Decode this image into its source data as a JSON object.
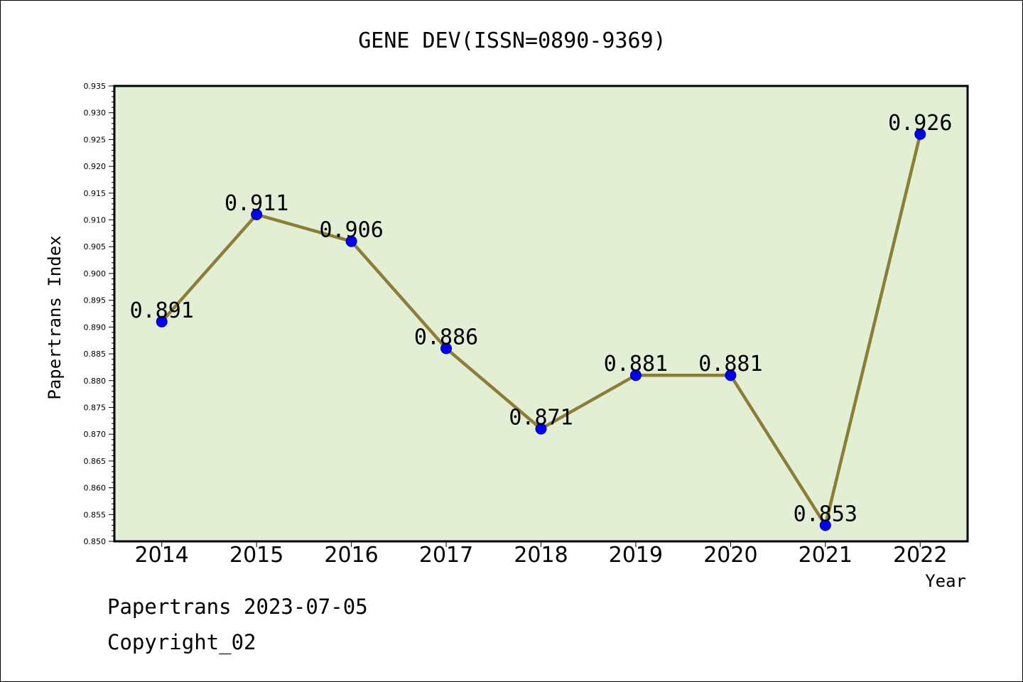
{
  "colors": {
    "plot_background": "#e2efd5",
    "line": "#8c7e35",
    "marker": "#0000ff",
    "marker_edge": "#00008b",
    "frame": "#000000"
  },
  "footer": {
    "date_text": "Papertrans 2023-07-05",
    "copyright_text": "Copyright_02"
  },
  "chart_data": {
    "type": "line",
    "title": "GENE DEV(ISSN=0890-9369)",
    "xlabel": "Year",
    "ylabel": "Papertrans Index",
    "categories": [
      "2014",
      "2015",
      "2016",
      "2017",
      "2018",
      "2019",
      "2020",
      "2021",
      "2022"
    ],
    "series": [
      {
        "values": [
          0.891,
          0.911,
          0.906,
          0.886,
          0.871,
          0.881,
          0.881,
          0.853,
          0.926
        ],
        "data_labels": [
          "0.891",
          "0.911",
          "0.906",
          "0.886",
          "0.871",
          "0.881",
          "0.881",
          "0.853",
          "0.926"
        ]
      }
    ],
    "ylim": [
      0.85,
      0.935
    ],
    "yticks": [
      "0.850",
      "0.855",
      "0.860",
      "0.865",
      "0.870",
      "0.875",
      "0.880",
      "0.885",
      "0.890",
      "0.895",
      "0.900",
      "0.905",
      "0.910",
      "0.915",
      "0.920",
      "0.925",
      "0.930",
      "0.935"
    ],
    "grid": false,
    "legend": "none"
  }
}
